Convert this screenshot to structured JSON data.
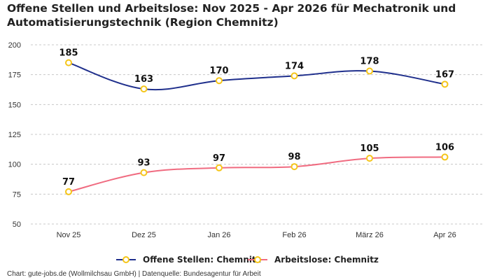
{
  "chart_data": {
    "type": "line",
    "title": "Offene Stellen und Arbeitslose: Nov 2025 - Apr 2026 für Mechatronik und Automatisierungstechnik (Region Chemnitz)",
    "categories": [
      "Nov 25",
      "Dez 25",
      "Jan 26",
      "Feb 26",
      "März 26",
      "Apr 26"
    ],
    "series": [
      {
        "name": "Offene Stellen: Chemnitz",
        "values": [
          185,
          163,
          170,
          174,
          178,
          167
        ],
        "color": "#1f2f8c"
      },
      {
        "name": "Arbeitslose: Chemnitz",
        "values": [
          77,
          93,
          97,
          98,
          105,
          106
        ],
        "color": "#f06b80"
      }
    ],
    "yticks": [
      50,
      75,
      100,
      125,
      150,
      175,
      200
    ],
    "ylim": [
      50,
      200
    ],
    "grid": true,
    "legend_position": "bottom",
    "marker_color": "#f5c518"
  },
  "credit": "Chart: gute-jobs.de (Wollmilchsau GmbH) | Datenquelle: Bundesagentur für Arbeit"
}
